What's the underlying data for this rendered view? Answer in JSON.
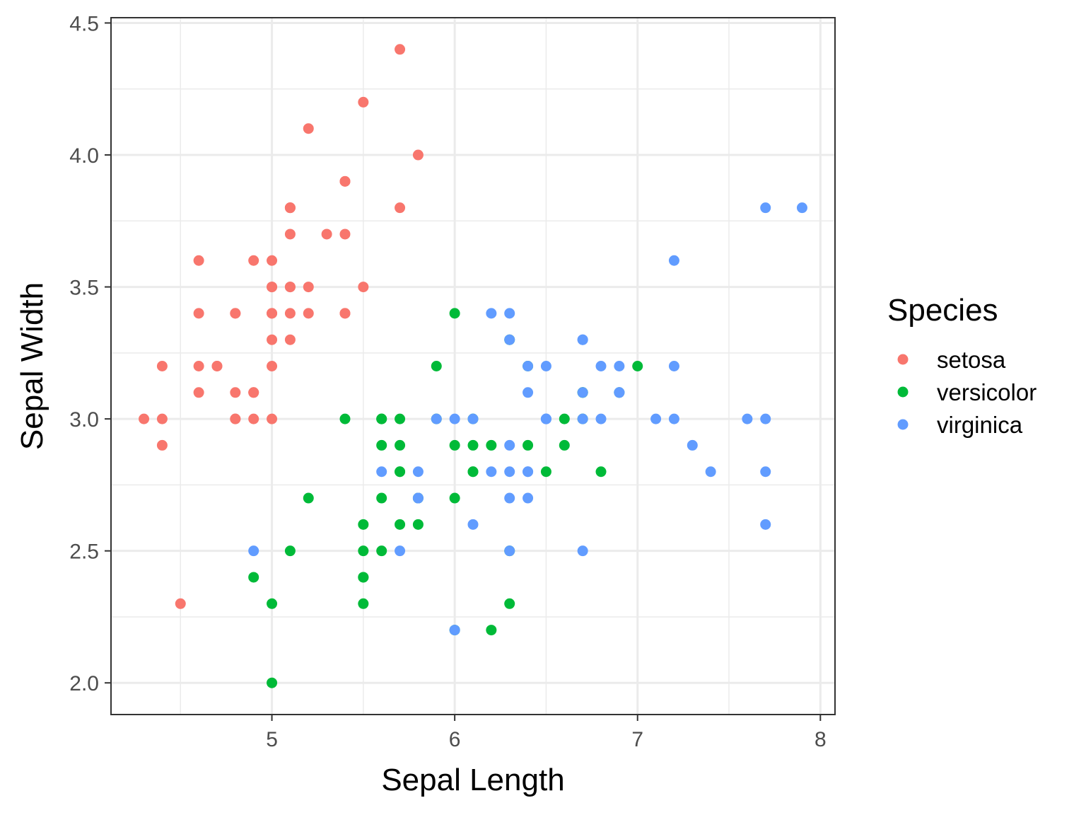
{
  "chart_data": {
    "type": "scatter",
    "title": "",
    "xlabel": "Sepal Length",
    "ylabel": "Sepal Width",
    "xlim": [
      4.12,
      8.08
    ],
    "ylim": [
      1.88,
      4.52
    ],
    "x_ticks": [
      5,
      6,
      7,
      8
    ],
    "y_ticks": [
      2.0,
      2.5,
      3.0,
      3.5,
      4.0,
      4.5
    ],
    "x_tick_labels": [
      "5",
      "6",
      "7",
      "8"
    ],
    "y_tick_labels": [
      "2.0",
      "2.5",
      "3.0",
      "3.5",
      "4.0",
      "4.5"
    ],
    "grid": true,
    "legend": {
      "title": "Species",
      "position": "right"
    },
    "series": [
      {
        "name": "setosa",
        "color": "#F8766D",
        "points": [
          [
            5.1,
            3.5
          ],
          [
            4.9,
            3.0
          ],
          [
            4.7,
            3.2
          ],
          [
            4.6,
            3.1
          ],
          [
            5.0,
            3.6
          ],
          [
            5.4,
            3.9
          ],
          [
            4.6,
            3.4
          ],
          [
            5.0,
            3.4
          ],
          [
            4.4,
            2.9
          ],
          [
            4.9,
            3.1
          ],
          [
            5.4,
            3.7
          ],
          [
            4.8,
            3.4
          ],
          [
            4.8,
            3.0
          ],
          [
            4.3,
            3.0
          ],
          [
            5.8,
            4.0
          ],
          [
            5.7,
            4.4
          ],
          [
            5.4,
            3.9
          ],
          [
            5.1,
            3.5
          ],
          [
            5.7,
            3.8
          ],
          [
            5.1,
            3.8
          ],
          [
            5.4,
            3.4
          ],
          [
            5.1,
            3.7
          ],
          [
            4.6,
            3.6
          ],
          [
            5.1,
            3.3
          ],
          [
            4.8,
            3.4
          ],
          [
            5.0,
            3.0
          ],
          [
            5.0,
            3.4
          ],
          [
            5.2,
            3.5
          ],
          [
            5.2,
            3.4
          ],
          [
            4.7,
            3.2
          ],
          [
            4.8,
            3.1
          ],
          [
            5.4,
            3.4
          ],
          [
            5.2,
            4.1
          ],
          [
            5.5,
            4.2
          ],
          [
            4.9,
            3.1
          ],
          [
            5.0,
            3.2
          ],
          [
            5.5,
            3.5
          ],
          [
            4.9,
            3.6
          ],
          [
            4.4,
            3.0
          ],
          [
            5.1,
            3.4
          ],
          [
            5.0,
            3.5
          ],
          [
            4.5,
            2.3
          ],
          [
            4.4,
            3.2
          ],
          [
            5.0,
            3.5
          ],
          [
            5.1,
            3.8
          ],
          [
            4.8,
            3.0
          ],
          [
            5.1,
            3.8
          ],
          [
            4.6,
            3.2
          ],
          [
            5.3,
            3.7
          ],
          [
            5.0,
            3.3
          ]
        ]
      },
      {
        "name": "versicolor",
        "color": "#00BA38",
        "points": [
          [
            7.0,
            3.2
          ],
          [
            6.4,
            3.2
          ],
          [
            6.9,
            3.1
          ],
          [
            5.5,
            2.3
          ],
          [
            6.5,
            2.8
          ],
          [
            5.7,
            2.8
          ],
          [
            6.3,
            3.3
          ],
          [
            4.9,
            2.4
          ],
          [
            6.6,
            2.9
          ],
          [
            5.2,
            2.7
          ],
          [
            5.0,
            2.0
          ],
          [
            5.9,
            3.0
          ],
          [
            6.0,
            2.2
          ],
          [
            6.1,
            2.9
          ],
          [
            5.6,
            2.9
          ],
          [
            6.7,
            3.1
          ],
          [
            5.6,
            3.0
          ],
          [
            5.8,
            2.7
          ],
          [
            6.2,
            2.2
          ],
          [
            5.6,
            2.5
          ],
          [
            5.9,
            3.2
          ],
          [
            6.1,
            2.8
          ],
          [
            6.3,
            2.5
          ],
          [
            6.1,
            2.8
          ],
          [
            6.4,
            2.9
          ],
          [
            6.6,
            3.0
          ],
          [
            6.8,
            2.8
          ],
          [
            6.7,
            3.0
          ],
          [
            6.0,
            2.9
          ],
          [
            5.7,
            2.6
          ],
          [
            5.5,
            2.4
          ],
          [
            5.5,
            2.4
          ],
          [
            5.8,
            2.7
          ],
          [
            6.0,
            2.7
          ],
          [
            5.4,
            3.0
          ],
          [
            6.0,
            3.4
          ],
          [
            6.7,
            3.1
          ],
          [
            6.3,
            2.3
          ],
          [
            5.6,
            3.0
          ],
          [
            5.5,
            2.5
          ],
          [
            5.5,
            2.6
          ],
          [
            6.1,
            3.0
          ],
          [
            5.8,
            2.6
          ],
          [
            5.0,
            2.3
          ],
          [
            5.6,
            2.7
          ],
          [
            5.7,
            3.0
          ],
          [
            5.7,
            2.9
          ],
          [
            6.2,
            2.9
          ],
          [
            5.1,
            2.5
          ],
          [
            5.7,
            2.8
          ]
        ]
      },
      {
        "name": "virginica",
        "color": "#619CFF",
        "points": [
          [
            6.3,
            3.3
          ],
          [
            5.8,
            2.7
          ],
          [
            7.1,
            3.0
          ],
          [
            6.3,
            2.9
          ],
          [
            6.5,
            3.0
          ],
          [
            7.6,
            3.0
          ],
          [
            4.9,
            2.5
          ],
          [
            7.3,
            2.9
          ],
          [
            6.7,
            2.5
          ],
          [
            7.2,
            3.6
          ],
          [
            6.5,
            3.2
          ],
          [
            6.4,
            2.7
          ],
          [
            6.8,
            3.0
          ],
          [
            5.7,
            2.5
          ],
          [
            5.8,
            2.8
          ],
          [
            6.4,
            3.2
          ],
          [
            6.5,
            3.0
          ],
          [
            7.7,
            3.8
          ],
          [
            7.7,
            2.6
          ],
          [
            6.0,
            2.2
          ],
          [
            6.9,
            3.2
          ],
          [
            5.6,
            2.8
          ],
          [
            7.7,
            2.8
          ],
          [
            6.3,
            2.7
          ],
          [
            6.7,
            3.3
          ],
          [
            7.2,
            3.2
          ],
          [
            6.2,
            2.8
          ],
          [
            6.1,
            3.0
          ],
          [
            6.4,
            2.8
          ],
          [
            7.2,
            3.0
          ],
          [
            7.4,
            2.8
          ],
          [
            7.9,
            3.8
          ],
          [
            6.4,
            2.8
          ],
          [
            6.3,
            2.8
          ],
          [
            6.1,
            2.6
          ],
          [
            7.7,
            3.0
          ],
          [
            6.3,
            3.4
          ],
          [
            6.4,
            3.1
          ],
          [
            6.0,
            3.0
          ],
          [
            6.9,
            3.1
          ],
          [
            6.7,
            3.1
          ],
          [
            6.9,
            3.1
          ],
          [
            5.8,
            2.7
          ],
          [
            6.8,
            3.2
          ],
          [
            6.7,
            3.3
          ],
          [
            6.7,
            3.0
          ],
          [
            6.3,
            2.5
          ],
          [
            6.5,
            3.0
          ],
          [
            6.2,
            3.4
          ],
          [
            5.9,
            3.0
          ]
        ]
      }
    ]
  }
}
